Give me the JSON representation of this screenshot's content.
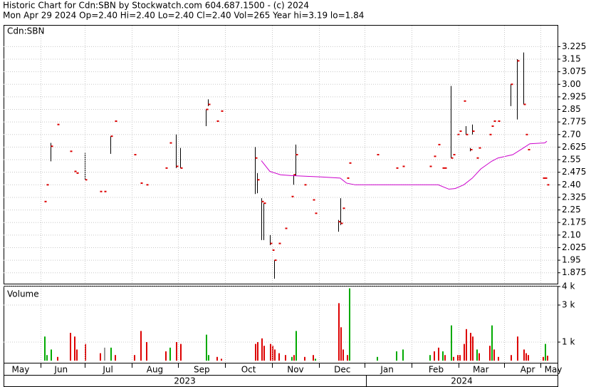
{
  "chart_data": [
    {
      "type": "hilo",
      "title": "Historic Chart for Cdn:SBN by Stockwatch.com 604.687.1500 - (c) 2024",
      "subtitle": "Mon Apr 29 2024  Op=2.40  Hi=2.40  Lo=2.40  Cl=2.40  Vol=265  Year hi=3.19  lo=1.84",
      "label": "Cdn:SBN",
      "xlim": [
        0,
        260
      ],
      "ylim": [
        1.81,
        3.35
      ],
      "yticks": [
        3.225,
        3.15,
        3.075,
        {
          "value": 3.0,
          "label": "3.00"
        },
        2.925,
        2.85,
        2.775,
        {
          "value": 2.7,
          "label": "2.70"
        },
        2.625,
        2.55,
        2.475,
        {
          "value": 2.4,
          "label": "2.40"
        },
        2.325,
        2.25,
        2.175,
        {
          "value": 2.1,
          "label": "2.10"
        },
        2.025,
        1.95,
        1.875
      ],
      "grid": true,
      "bar_color": "#000000",
      "close_color": "#dd0000",
      "x": [
        19,
        20,
        22,
        25,
        31,
        33,
        34,
        38,
        45,
        47,
        50,
        52,
        61,
        64,
        67,
        76,
        78,
        81,
        83,
        95,
        96,
        100,
        102,
        118,
        119,
        121,
        122,
        125,
        126,
        127,
        129,
        132,
        135,
        136,
        137,
        141,
        145,
        146,
        157,
        158,
        159,
        161,
        162,
        175,
        184,
        187,
        200,
        202,
        204,
        206,
        207,
        210,
        211,
        213,
        214,
        216,
        217,
        219,
        220,
        222,
        223,
        228,
        229,
        230,
        232,
        238,
        241,
        244,
        245,
        246,
        253,
        254,
        255
      ],
      "high": [
        2.3,
        2.4,
        2.65,
        2.76,
        2.6,
        2.48,
        2.47,
        2.59,
        2.36,
        2.36,
        2.69,
        2.78,
        2.58,
        2.41,
        2.4,
        2.5,
        2.65,
        2.7,
        2.62,
        2.85,
        2.91,
        2.78,
        2.84,
        2.625,
        2.47,
        2.32,
        2.29,
        2.1,
        2.01,
        1.95,
        2.05,
        2.14,
        2.33,
        2.46,
        2.64,
        2.4,
        2.31,
        2.23,
        2.19,
        2.32,
        2.26,
        2.44,
        2.53,
        2.58,
        2.5,
        2.51,
        2.51,
        2.57,
        2.64,
        2.5,
        2.5,
        2.99,
        2.58,
        2.7,
        2.72,
        2.9,
        2.75,
        2.62,
        2.76,
        2.56,
        2.62,
        2.7,
        2.75,
        2.78,
        2.78,
        3.0,
        3.15,
        3.19,
        2.7,
        2.61,
        2.44,
        2.44,
        2.4
      ],
      "low": [
        2.3,
        2.4,
        2.54,
        2.76,
        2.6,
        2.48,
        2.47,
        2.43,
        2.36,
        2.36,
        2.585,
        2.78,
        2.58,
        2.41,
        2.4,
        2.5,
        2.65,
        2.5,
        2.5,
        2.75,
        2.87,
        2.78,
        2.84,
        2.345,
        2.35,
        2.07,
        2.07,
        2.04,
        2.01,
        1.84,
        2.05,
        2.14,
        2.33,
        2.4,
        2.455,
        2.4,
        2.31,
        2.23,
        2.12,
        2.16,
        2.26,
        2.44,
        2.53,
        2.58,
        2.5,
        2.51,
        2.51,
        2.57,
        2.64,
        2.5,
        2.5,
        2.56,
        2.58,
        2.7,
        2.72,
        2.9,
        2.7,
        2.6,
        2.7,
        2.56,
        2.62,
        2.7,
        2.75,
        2.78,
        2.78,
        2.87,
        2.79,
        2.88,
        2.7,
        2.61,
        2.44,
        2.44,
        2.4
      ],
      "close": [
        2.3,
        2.4,
        2.63,
        2.76,
        2.6,
        2.48,
        2.47,
        2.43,
        2.36,
        2.36,
        2.69,
        2.78,
        2.58,
        2.41,
        2.4,
        2.5,
        2.65,
        2.51,
        2.5,
        2.85,
        2.88,
        2.78,
        2.84,
        2.56,
        2.43,
        2.3,
        2.29,
        2.05,
        2.01,
        1.95,
        2.05,
        2.14,
        2.33,
        2.46,
        2.58,
        2.4,
        2.31,
        2.23,
        2.18,
        2.17,
        2.26,
        2.44,
        2.53,
        2.58,
        2.5,
        2.51,
        2.51,
        2.57,
        2.64,
        2.5,
        2.5,
        2.56,
        2.58,
        2.7,
        2.72,
        2.9,
        2.7,
        2.61,
        2.72,
        2.56,
        2.62,
        2.7,
        2.75,
        2.78,
        2.78,
        3.0,
        3.14,
        2.88,
        2.7,
        2.61,
        2.44,
        2.44,
        2.4
      ],
      "ma": {
        "color": "#cc00cc",
        "x": [
          121,
          125,
          130,
          135,
          149,
          158,
          161,
          165,
          199,
          204,
          209,
          212,
          216,
          220,
          224,
          229,
          232,
          239,
          244,
          247,
          254,
          255
        ],
        "values": [
          2.544,
          2.48,
          2.46,
          2.455,
          2.447,
          2.44,
          2.41,
          2.4,
          2.4,
          2.4,
          2.374,
          2.378,
          2.4,
          2.44,
          2.495,
          2.54,
          2.56,
          2.58,
          2.62,
          2.645,
          2.65,
          2.66
        ]
      }
    },
    {
      "type": "bar",
      "label": "Volume",
      "xlim": [
        0,
        260
      ],
      "ylim": [
        0,
        4000
      ],
      "yticks": [
        {
          "value": 4000,
          "label": "4 k"
        },
        {
          "value": 3000,
          "label": "3 k"
        },
        {
          "value": 1000,
          "label": "1 k"
        }
      ],
      "grid": true,
      "values": [
        1300,
        300,
        600,
        200,
        1500,
        1300,
        600,
        900,
        400,
        700,
        700,
        300,
        300,
        1600,
        1000,
        500,
        700,
        1000,
        900,
        1400,
        300,
        200,
        100,
        900,
        1000,
        1200,
        800,
        900,
        800,
        600,
        400,
        300,
        200,
        300,
        1600,
        200,
        300,
        100,
        3100,
        1800,
        600,
        300,
        3900,
        200,
        500,
        600,
        300,
        500,
        700,
        500,
        300,
        1900,
        200,
        300,
        300,
        900,
        1700,
        1500,
        1300,
        600,
        400,
        800,
        1900,
        600,
        200,
        300,
        1300,
        600,
        400,
        300,
        200,
        900,
        265
      ],
      "colors": [
        "#00aa00",
        "#00aa00",
        "#00aa00",
        "#dd0000",
        "#dd0000",
        "#dd0000",
        "#dd0000",
        "#dd0000",
        "#dd0000",
        "#999999",
        "#00aa00",
        "#dd0000",
        "#dd0000",
        "#dd0000",
        "#dd0000",
        "#dd0000",
        "#00aa00",
        "#dd0000",
        "#dd0000",
        "#00aa00",
        "#00aa00",
        "#dd0000",
        "#dd0000",
        "#dd0000",
        "#dd0000",
        "#dd0000",
        "#dd0000",
        "#dd0000",
        "#dd0000",
        "#dd0000",
        "#dd0000",
        "#dd0000",
        "#00aa00",
        "#dd0000",
        "#00aa00",
        "#dd0000",
        "#dd0000",
        "#00aa00",
        "#dd0000",
        "#dd0000",
        "#dd0000",
        "#dd0000",
        "#00aa00",
        "#00aa00",
        "#00aa00",
        "#00aa00",
        "#00aa00",
        "#dd0000",
        "#dd0000",
        "#00aa00",
        "#dd0000",
        "#00aa00",
        "#dd0000",
        "#dd0000",
        "#dd0000",
        "#dd0000",
        "#dd0000",
        "#dd0000",
        "#dd0000",
        "#00aa00",
        "#dd0000",
        "#dd0000",
        "#00aa00",
        "#dd0000",
        "#dd0000",
        "#dd0000",
        "#dd0000",
        "#dd0000",
        "#dd0000",
        "#dd0000",
        "#dd0000",
        "#00aa00",
        "#dd0000"
      ],
      "xticks": [
        {
          "value": 8,
          "label": "May"
        },
        {
          "value": 27,
          "label": "Jun"
        },
        {
          "value": 49,
          "label": "Jul"
        },
        {
          "value": 71,
          "label": "Aug"
        },
        {
          "value": 93,
          "label": "Sep"
        },
        {
          "value": 115,
          "label": "Oct"
        },
        {
          "value": 137,
          "label": "Nov"
        },
        {
          "value": 159,
          "label": "Dec"
        },
        {
          "value": 180,
          "label": "Jan"
        },
        {
          "value": 203,
          "label": "Feb"
        },
        {
          "value": 224,
          "label": "Mar"
        },
        {
          "value": 246,
          "label": "Apr"
        },
        {
          "value": 258,
          "label": "May"
        }
      ],
      "years": [
        "2023",
        "2024"
      ]
    }
  ]
}
